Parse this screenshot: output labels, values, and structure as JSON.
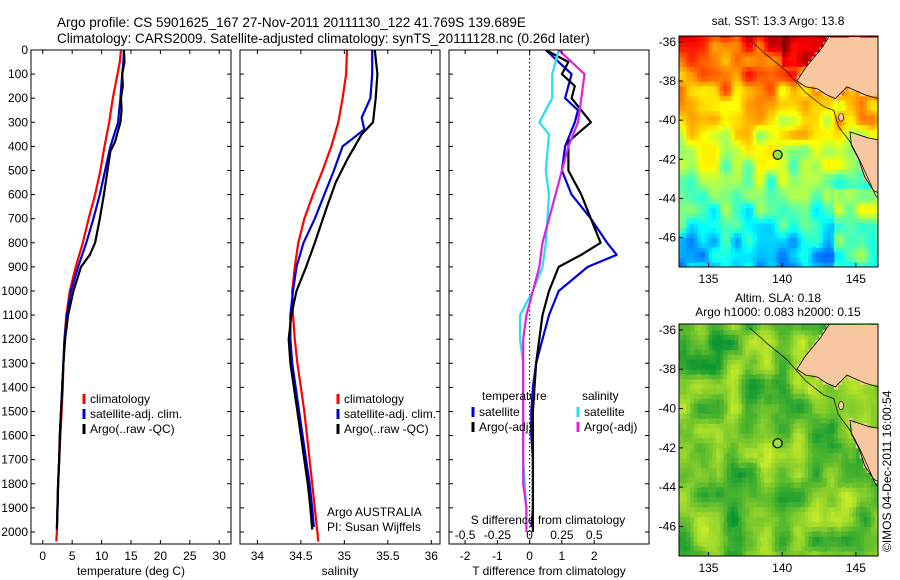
{
  "header": {
    "line1": "Argo profile: CS 5901625_167 27-Nov-2011 20111130_122 41.769S 139.689E",
    "line2": "Climatology: CARS2009. Satellite-adjusted climatology: synTS_20111128.nc (0.26d later)"
  },
  "credit": "©IMOS 04-Dec-2011 16:00:54",
  "colors": {
    "climatology": "#ff0000",
    "satellite": "#0000dd",
    "argo": "#000000",
    "s_satellite": "#22e0ee",
    "s_argo": "#e020e0",
    "land": "#f9c79f"
  },
  "chart_data": [
    {
      "type": "line",
      "xlabel": "temperature (deg C)",
      "xlim": [
        -2,
        32
      ],
      "ylim": [
        2050,
        0
      ],
      "x_ticks": [
        0,
        5,
        10,
        15,
        20,
        25,
        30
      ],
      "y_ticks": [
        0,
        100,
        200,
        300,
        400,
        500,
        600,
        700,
        800,
        900,
        1000,
        1100,
        1200,
        1300,
        1400,
        1500,
        1600,
        1700,
        1800,
        1900,
        2000
      ],
      "legend": [
        "climatology",
        "satellite-adj. clim.",
        "Argo(..raw -QC)"
      ],
      "series": [
        {
          "name": "climatology",
          "color": "#ff0000",
          "points": [
            [
              13.3,
              0
            ],
            [
              13.1,
              50
            ],
            [
              12.7,
              100
            ],
            [
              11.9,
              200
            ],
            [
              11.3,
              300
            ],
            [
              10.5,
              400
            ],
            [
              9.8,
              500
            ],
            [
              8.9,
              600
            ],
            [
              7.8,
              700
            ],
            [
              6.8,
              800
            ],
            [
              5.6,
              900
            ],
            [
              4.6,
              1000
            ],
            [
              4.0,
              1100
            ],
            [
              3.7,
              1200
            ],
            [
              3.5,
              1300
            ],
            [
              3.4,
              1400
            ],
            [
              3.2,
              1500
            ],
            [
              3.0,
              1600
            ],
            [
              2.8,
              1700
            ],
            [
              2.6,
              1800
            ],
            [
              2.5,
              1900
            ],
            [
              2.4,
              2000
            ],
            [
              2.3,
              2040
            ]
          ]
        },
        {
          "name": "satellite-adj. clim.",
          "color": "#0000dd",
          "points": [
            [
              13.8,
              0
            ],
            [
              13.7,
              50
            ],
            [
              13.5,
              100
            ],
            [
              13.2,
              200
            ],
            [
              13.0,
              250
            ],
            [
              12.8,
              300
            ],
            [
              11.5,
              400
            ],
            [
              10.6,
              500
            ],
            [
              9.7,
              600
            ],
            [
              8.6,
              700
            ],
            [
              7.4,
              800
            ],
            [
              6.0,
              900
            ],
            [
              4.8,
              1000
            ],
            [
              4.1,
              1100
            ],
            [
              3.7,
              1200
            ],
            [
              3.5,
              1300
            ],
            [
              3.3,
              1400
            ],
            [
              3.1,
              1500
            ],
            [
              2.9,
              1600
            ],
            [
              2.8,
              1700
            ],
            [
              2.6,
              1800
            ],
            [
              2.5,
              1900
            ],
            [
              2.4,
              1980
            ]
          ]
        },
        {
          "name": "Argo(..raw -QC)",
          "color": "#000000",
          "points": [
            [
              13.8,
              0
            ],
            [
              13.9,
              50
            ],
            [
              13.5,
              100
            ],
            [
              13.6,
              150
            ],
            [
              13.3,
              200
            ],
            [
              13.4,
              250
            ],
            [
              13.2,
              300
            ],
            [
              12.3,
              380
            ],
            [
              11.5,
              420
            ],
            [
              11.0,
              500
            ],
            [
              10.4,
              600
            ],
            [
              9.7,
              700
            ],
            [
              8.9,
              800
            ],
            [
              8.0,
              850
            ],
            [
              6.5,
              900
            ],
            [
              5.2,
              1000
            ],
            [
              4.3,
              1100
            ],
            [
              3.8,
              1200
            ],
            [
              3.5,
              1300
            ],
            [
              3.3,
              1400
            ],
            [
              3.1,
              1500
            ],
            [
              2.9,
              1600
            ],
            [
              2.8,
              1700
            ],
            [
              2.6,
              1800
            ],
            [
              2.5,
              1900
            ],
            [
              2.4,
              1990
            ]
          ]
        }
      ]
    },
    {
      "type": "line",
      "xlabel": "salinity",
      "xlim": [
        33.8,
        36.1
      ],
      "ylim": [
        2050,
        0
      ],
      "x_ticks": [
        34,
        34.5,
        35,
        35.5,
        36
      ],
      "legend": [
        "climatology",
        "satellite-adj. clim.",
        "Argo(..raw -QC)"
      ],
      "annotation": [
        "Argo AUSTRALIA",
        "PI: Susan Wijffels"
      ],
      "series": [
        {
          "name": "climatology",
          "color": "#ff0000",
          "points": [
            [
              35.03,
              0
            ],
            [
              35.02,
              100
            ],
            [
              34.98,
              200
            ],
            [
              34.93,
              300
            ],
            [
              34.85,
              400
            ],
            [
              34.75,
              500
            ],
            [
              34.64,
              600
            ],
            [
              34.54,
              700
            ],
            [
              34.47,
              800
            ],
            [
              34.43,
              900
            ],
            [
              34.4,
              1000
            ],
            [
              34.41,
              1100
            ],
            [
              34.43,
              1200
            ],
            [
              34.46,
              1300
            ],
            [
              34.5,
              1400
            ],
            [
              34.54,
              1500
            ],
            [
              34.57,
              1600
            ],
            [
              34.6,
              1700
            ],
            [
              34.63,
              1800
            ],
            [
              34.66,
              1900
            ],
            [
              34.69,
              2000
            ],
            [
              34.7,
              2040
            ]
          ]
        },
        {
          "name": "satellite-adj. clim.",
          "color": "#0000dd",
          "points": [
            [
              35.32,
              0
            ],
            [
              35.32,
              100
            ],
            [
              35.3,
              200
            ],
            [
              35.2,
              280
            ],
            [
              35.23,
              330
            ],
            [
              34.98,
              400
            ],
            [
              34.88,
              500
            ],
            [
              34.77,
              600
            ],
            [
              34.66,
              700
            ],
            [
              34.53,
              800
            ],
            [
              34.45,
              900
            ],
            [
              34.41,
              1000
            ],
            [
              34.38,
              1100
            ],
            [
              34.38,
              1200
            ],
            [
              34.4,
              1300
            ],
            [
              34.44,
              1400
            ],
            [
              34.48,
              1500
            ],
            [
              34.52,
              1600
            ],
            [
              34.56,
              1700
            ],
            [
              34.6,
              1800
            ],
            [
              34.63,
              1900
            ],
            [
              34.65,
              1980
            ]
          ]
        },
        {
          "name": "Argo(..raw -QC)",
          "color": "#000000",
          "points": [
            [
              35.35,
              0
            ],
            [
              35.38,
              100
            ],
            [
              35.36,
              200
            ],
            [
              35.33,
              300
            ],
            [
              35.2,
              350
            ],
            [
              35.04,
              450
            ],
            [
              34.9,
              550
            ],
            [
              34.8,
              650
            ],
            [
              34.66,
              800
            ],
            [
              34.56,
              900
            ],
            [
              34.45,
              1000
            ],
            [
              34.39,
              1100
            ],
            [
              34.36,
              1200
            ],
            [
              34.38,
              1300
            ],
            [
              34.42,
              1400
            ],
            [
              34.46,
              1500
            ],
            [
              34.5,
              1600
            ],
            [
              34.54,
              1700
            ],
            [
              34.58,
              1800
            ],
            [
              34.61,
              1900
            ],
            [
              34.63,
              1990
            ]
          ]
        }
      ]
    },
    {
      "type": "line",
      "xlabel": "T difference from climatology",
      "xlabel_top": "S difference from climatology",
      "xlim": [
        -2.5,
        3.7
      ],
      "ylim": [
        2050,
        0
      ],
      "x_ticks": [
        -2,
        -1,
        0,
        1,
        2
      ],
      "x_ticks_top": [
        "-0.5",
        "-0.25",
        "0",
        "0.25",
        "0.5"
      ],
      "legend_left": [
        "temperature",
        "satellite",
        "Argo(-adj)"
      ],
      "legend_right": [
        "salinity",
        "satellite",
        "Argo(-adj)"
      ],
      "series": [
        {
          "name": "temperature satellite",
          "color": "#0000dd",
          "points": [
            [
              0.5,
              0
            ],
            [
              1.3,
              100
            ],
            [
              1.1,
              200
            ],
            [
              1.5,
              250
            ],
            [
              1.4,
              300
            ],
            [
              1.1,
              400
            ],
            [
              1.0,
              500
            ],
            [
              1.3,
              600
            ],
            [
              1.9,
              700
            ],
            [
              2.4,
              800
            ],
            [
              2.7,
              850
            ],
            [
              1.8,
              900
            ],
            [
              0.9,
              1000
            ],
            [
              0.6,
              1100
            ],
            [
              0.4,
              1200
            ],
            [
              0.2,
              1300
            ],
            [
              0.1,
              1400
            ],
            [
              0.05,
              1500
            ],
            [
              0.05,
              1600
            ],
            [
              0.1,
              1700
            ],
            [
              0.1,
              1800
            ],
            [
              0.1,
              1900
            ],
            [
              0.05,
              1980
            ]
          ]
        },
        {
          "name": "temperature Argo(-adj)",
          "color": "#000000",
          "points": [
            [
              0.5,
              0
            ],
            [
              1.2,
              50
            ],
            [
              1.0,
              100
            ],
            [
              1.4,
              150
            ],
            [
              1.3,
              200
            ],
            [
              1.9,
              300
            ],
            [
              1.2,
              380
            ],
            [
              1.2,
              500
            ],
            [
              1.6,
              600
            ],
            [
              1.9,
              700
            ],
            [
              2.2,
              800
            ],
            [
              1.6,
              850
            ],
            [
              0.9,
              900
            ],
            [
              0.6,
              1000
            ],
            [
              0.4,
              1100
            ],
            [
              0.3,
              1200
            ],
            [
              0.2,
              1300
            ],
            [
              0.15,
              1400
            ],
            [
              0.1,
              1500
            ],
            [
              0.1,
              1600
            ],
            [
              0.1,
              1700
            ],
            [
              0.1,
              1800
            ],
            [
              0.1,
              1900
            ],
            [
              0.1,
              2000
            ]
          ]
        },
        {
          "name": "salinity satellite",
          "color": "#22e0ee",
          "points": [
            [
              0.9,
              0
            ],
            [
              0.7,
              100
            ],
            [
              0.7,
              200
            ],
            [
              0.3,
              300
            ],
            [
              0.6,
              350
            ],
            [
              0.5,
              500
            ],
            [
              0.6,
              600
            ],
            [
              0.5,
              800
            ],
            [
              0.4,
              900
            ],
            [
              0.1,
              1000
            ],
            [
              -0.3,
              1100
            ],
            [
              -0.3,
              1200
            ],
            [
              -0.2,
              1300
            ],
            [
              -0.2,
              1400
            ],
            [
              -0.2,
              1500
            ],
            [
              -0.2,
              1600
            ],
            [
              -0.2,
              1700
            ],
            [
              -0.15,
              1800
            ],
            [
              -0.1,
              1900
            ],
            [
              -0.1,
              1980
            ]
          ]
        },
        {
          "name": "salinity Argo(-adj)",
          "color": "#e020e0",
          "points": [
            [
              0.9,
              0
            ],
            [
              1.7,
              100
            ],
            [
              1.6,
              200
            ],
            [
              1.5,
              300
            ],
            [
              1.2,
              400
            ],
            [
              1.0,
              500
            ],
            [
              0.8,
              600
            ],
            [
              0.6,
              700
            ],
            [
              0.4,
              800
            ],
            [
              0.3,
              900
            ],
            [
              0.1,
              1000
            ],
            [
              -0.1,
              1100
            ],
            [
              -0.2,
              1200
            ],
            [
              -0.2,
              1300
            ],
            [
              -0.2,
              1400
            ],
            [
              -0.2,
              1500
            ],
            [
              -0.2,
              1600
            ],
            [
              -0.2,
              1700
            ],
            [
              -0.2,
              1800
            ],
            [
              -0.1,
              1900
            ],
            [
              -0.1,
              2000
            ]
          ]
        }
      ]
    },
    {
      "type": "heatmap",
      "title": "sat. SST: 13.3  Argo: 13.8",
      "xlim": [
        133,
        146.5
      ],
      "ylim": [
        -47.5,
        -35.7
      ],
      "x_ticks": [
        135,
        140,
        145
      ],
      "y_ticks": [
        -46,
        -44,
        -42,
        -40,
        -38,
        -36
      ],
      "colormap": "jet",
      "marker": {
        "lon": 139.689,
        "lat": -41.769
      }
    },
    {
      "type": "heatmap",
      "title_lines": [
        "Altim. SLA: 0.18",
        "Argo h1000: 0.083 h2000: 0.15"
      ],
      "xlim": [
        133,
        146.5
      ],
      "ylim": [
        -47.5,
        -35.7
      ],
      "x_ticks": [
        135,
        140,
        145
      ],
      "y_ticks": [
        -46,
        -44,
        -42,
        -40,
        -38,
        -36
      ],
      "colormap": "green",
      "marker": {
        "lon": 139.689,
        "lat": -41.769
      }
    }
  ]
}
